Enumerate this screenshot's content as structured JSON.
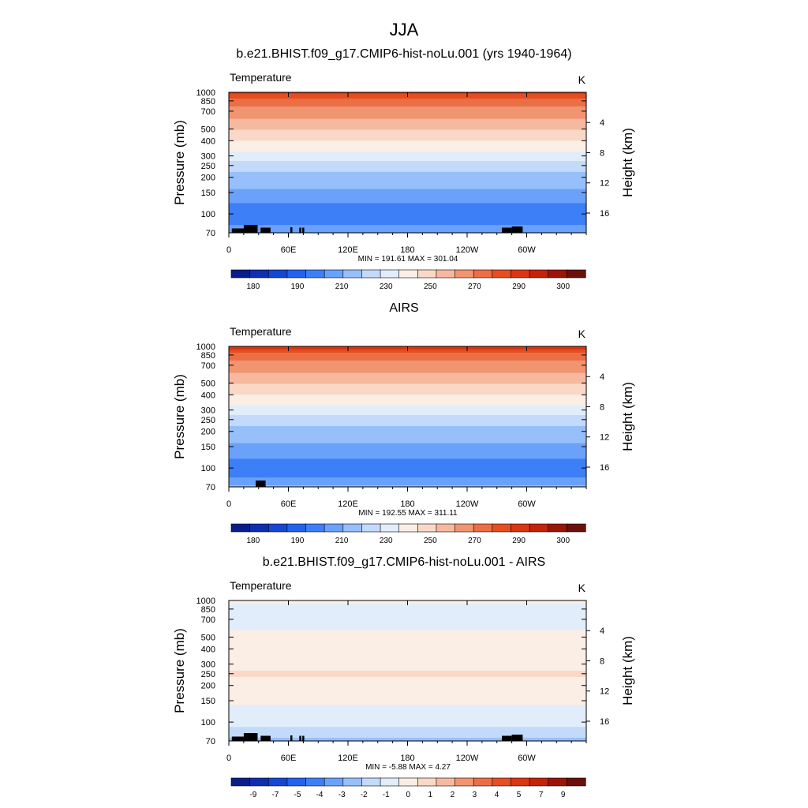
{
  "figure": {
    "title": "JJA"
  },
  "colors": {
    "temperature_fills": [
      "#0a1d8a",
      "#0d2fb0",
      "#1546d4",
      "#2262ee",
      "#3d7ff7",
      "#6aa1fa",
      "#97bff9",
      "#c3dafb",
      "#e2edfb",
      "#fbeee4",
      "#fad8c8",
      "#f6b9a0",
      "#f19470",
      "#ec6e45",
      "#e64d20",
      "#dd3412",
      "#c4220a",
      "#9b1506",
      "#6b0f0a"
    ],
    "difference_fills": [
      "#0a1d8a",
      "#0d2fb0",
      "#1546d4",
      "#2262ee",
      "#3d7ff7",
      "#6aa1fa",
      "#97bff9",
      "#c3dafb",
      "#e2edfb",
      "#fbeee4",
      "#fad8c8",
      "#f6b9a0",
      "#f19470",
      "#ec6e45",
      "#e64d20",
      "#dd3412",
      "#c4220a",
      "#9b1506",
      "#6b0f0a"
    ]
  },
  "chart_data": [
    {
      "type": "heatmap",
      "title": "b.e21.BHIST.f09_g17.CMIP6-hist-noLu.001 (yrs 1940-1964)",
      "variable_label": "Temperature",
      "units": "K",
      "xlabel": "",
      "ylabel": "Pressure (mb)",
      "right_ylabel": "Height (km)",
      "x_ticks": [
        "0",
        "60E",
        "120E",
        "180",
        "120W",
        "60W"
      ],
      "x_values": [
        0,
        60,
        120,
        180,
        240,
        300
      ],
      "xlim": [
        0,
        360
      ],
      "y_ticks": [
        "70",
        "100",
        "150",
        "200",
        "250",
        "300",
        "400",
        "500",
        "700",
        "850",
        "1000"
      ],
      "y_values": [
        70,
        100,
        150,
        200,
        250,
        300,
        400,
        500,
        700,
        850,
        1000
      ],
      "ylim": [
        1000,
        70
      ],
      "y_scale": "log",
      "height_ticks": [
        "16",
        "12",
        "8",
        "4"
      ],
      "height_values": [
        16,
        12,
        8,
        4
      ],
      "min_max_text": "MIN = 191.61  MAX = 301.04",
      "colorbar_labels": [
        "180",
        "190",
        "210",
        "230",
        "250",
        "270",
        "290",
        "300"
      ],
      "field": "temperature",
      "levels": [
        {
          "p": 70,
          "v": 210
        },
        {
          "p": 85,
          "v": 198
        },
        {
          "p": 100,
          "v": 194
        },
        {
          "p": 130,
          "v": 202
        },
        {
          "p": 150,
          "v": 208
        },
        {
          "p": 200,
          "v": 216
        },
        {
          "p": 250,
          "v": 226
        },
        {
          "p": 300,
          "v": 235
        },
        {
          "p": 400,
          "v": 250
        },
        {
          "p": 500,
          "v": 261
        },
        {
          "p": 600,
          "v": 269
        },
        {
          "p": 700,
          "v": 276
        },
        {
          "p": 850,
          "v": 286
        },
        {
          "p": 925,
          "v": 292
        },
        {
          "p": 1000,
          "v": 297
        }
      ],
      "terrain_blocks": [
        [
          3,
          22,
          -0.3
        ],
        [
          15,
          29,
          -1.2
        ],
        [
          32,
          42,
          -0.5
        ],
        [
          62,
          64,
          -0.6
        ],
        [
          71,
          73,
          -0.5
        ],
        [
          74,
          76,
          -0.5
        ],
        [
          275,
          285,
          -0.5
        ],
        [
          285,
          296,
          -0.8
        ]
      ]
    },
    {
      "type": "heatmap",
      "title": "AIRS",
      "variable_label": "Temperature",
      "units": "K",
      "xlabel": "",
      "ylabel": "Pressure (mb)",
      "right_ylabel": "Height (km)",
      "x_ticks": [
        "0",
        "60E",
        "120E",
        "180",
        "120W",
        "60W"
      ],
      "x_values": [
        0,
        60,
        120,
        180,
        240,
        300
      ],
      "xlim": [
        0,
        360
      ],
      "y_ticks": [
        "70",
        "100",
        "150",
        "200",
        "250",
        "300",
        "400",
        "500",
        "700",
        "850",
        "1000"
      ],
      "y_values": [
        70,
        100,
        150,
        200,
        250,
        300,
        400,
        500,
        700,
        850,
        1000
      ],
      "ylim": [
        1000,
        70
      ],
      "y_scale": "log",
      "height_ticks": [
        "16",
        "12",
        "8",
        "4"
      ],
      "height_values": [
        16,
        12,
        8,
        4
      ],
      "min_max_text": "MIN = 192.55  MAX = 311.11",
      "colorbar_labels": [
        "180",
        "190",
        "210",
        "230",
        "250",
        "270",
        "290",
        "300"
      ],
      "field": "temperature",
      "levels": [
        {
          "p": 70,
          "v": 212
        },
        {
          "p": 85,
          "v": 199
        },
        {
          "p": 100,
          "v": 195
        },
        {
          "p": 130,
          "v": 202
        },
        {
          "p": 150,
          "v": 208
        },
        {
          "p": 200,
          "v": 216
        },
        {
          "p": 250,
          "v": 226
        },
        {
          "p": 300,
          "v": 235
        },
        {
          "p": 400,
          "v": 250
        },
        {
          "p": 500,
          "v": 261
        },
        {
          "p": 600,
          "v": 269
        },
        {
          "p": 700,
          "v": 276
        },
        {
          "p": 850,
          "v": 286
        },
        {
          "p": 925,
          "v": 293
        },
        {
          "p": 1000,
          "v": 298
        }
      ],
      "terrain_blocks": [
        [
          27,
          37,
          -0.8
        ]
      ]
    },
    {
      "type": "heatmap",
      "title": "b.e21.BHIST.f09_g17.CMIP6-hist-noLu.001 - AIRS",
      "variable_label": "Temperature",
      "units": "K",
      "xlabel": "",
      "ylabel": "Pressure (mb)",
      "right_ylabel": "Height (km)",
      "x_ticks": [
        "0",
        "60E",
        "120E",
        "180",
        "120W",
        "60W"
      ],
      "x_values": [
        0,
        60,
        120,
        180,
        240,
        300
      ],
      "xlim": [
        0,
        360
      ],
      "y_ticks": [
        "70",
        "100",
        "150",
        "200",
        "250",
        "300",
        "400",
        "500",
        "700",
        "850",
        "1000"
      ],
      "y_values": [
        70,
        100,
        150,
        200,
        250,
        300,
        400,
        500,
        700,
        850,
        1000
      ],
      "ylim": [
        1000,
        70
      ],
      "y_scale": "log",
      "height_ticks": [
        "16",
        "12",
        "8",
        "4"
      ],
      "height_values": [
        16,
        12,
        8,
        4
      ],
      "min_max_text": "MIN =  -5.88  MAX =   4.27",
      "colorbar_labels": [
        "-9",
        "-7",
        "-5",
        "-4",
        "-3",
        "-2",
        "-1",
        "0",
        "1",
        "2",
        "3",
        "4",
        "5",
        "7",
        "9"
      ],
      "field": "difference",
      "levels": [
        {
          "p": 70,
          "v": -2.5
        },
        {
          "p": 80,
          "v": -1.5
        },
        {
          "p": 100,
          "v": -0.6
        },
        {
          "p": 130,
          "v": -0.3
        },
        {
          "p": 150,
          "v": 0.3
        },
        {
          "p": 200,
          "v": 0.5
        },
        {
          "p": 250,
          "v": 1.2
        },
        {
          "p": 300,
          "v": 0.5
        },
        {
          "p": 400,
          "v": 0.6
        },
        {
          "p": 500,
          "v": 0.4
        },
        {
          "p": 600,
          "v": -0.2
        },
        {
          "p": 700,
          "v": -0.6
        },
        {
          "p": 850,
          "v": -0.4
        },
        {
          "p": 1000,
          "v": 0.2
        }
      ],
      "terrain_blocks": [
        [
          3,
          22,
          -0.3
        ],
        [
          15,
          29,
          -1.2
        ],
        [
          32,
          42,
          -0.5
        ],
        [
          62,
          64,
          -0.6
        ],
        [
          71,
          73,
          -0.5
        ],
        [
          74,
          76,
          -0.5
        ],
        [
          275,
          285,
          -0.5
        ],
        [
          285,
          296,
          -0.8
        ]
      ]
    }
  ]
}
